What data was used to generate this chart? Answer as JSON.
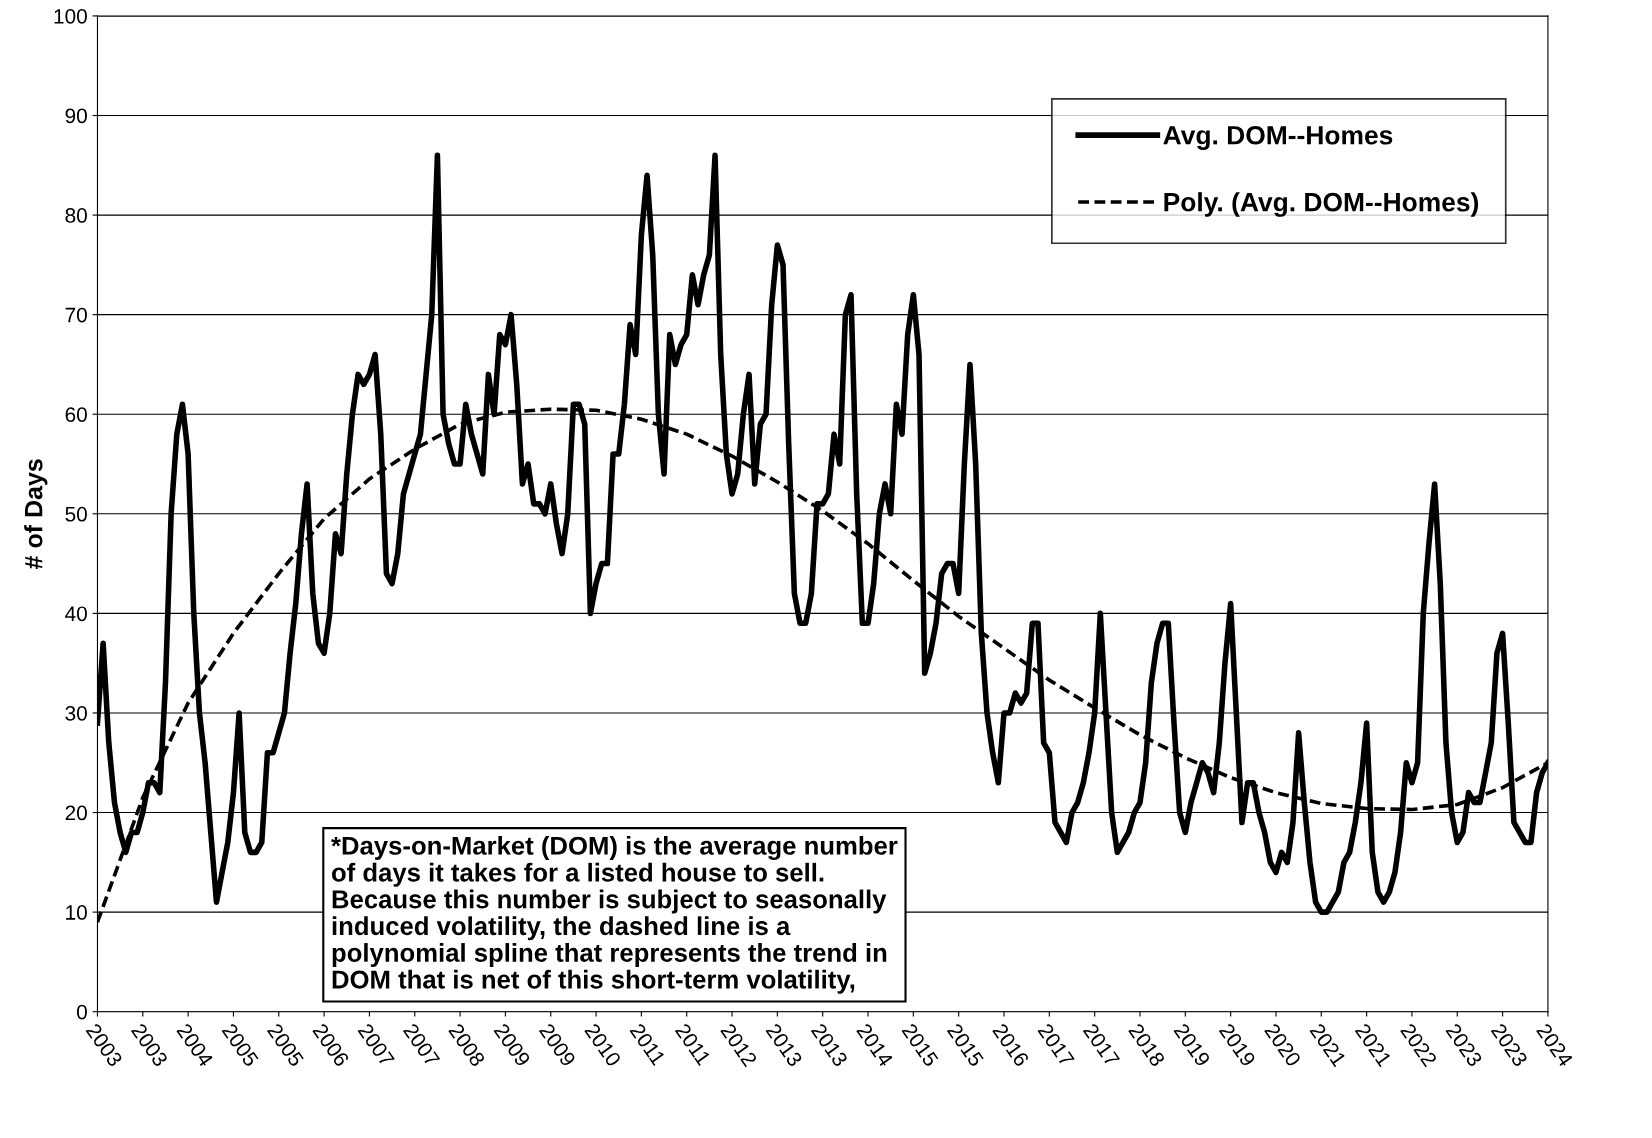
{
  "chart_data": {
    "type": "line",
    "ylabel": "# of Days",
    "ylim": [
      0,
      100
    ],
    "yticks": [
      0,
      10,
      20,
      30,
      40,
      50,
      60,
      70,
      80,
      90,
      100
    ],
    "categories": [
      "2003",
      null,
      null,
      null,
      null,
      null,
      null,
      null,
      "2003",
      null,
      null,
      null,
      null,
      null,
      null,
      null,
      "2004",
      null,
      null,
      null,
      null,
      null,
      null,
      null,
      "2005",
      null,
      null,
      null,
      null,
      null,
      null,
      null,
      "2005",
      null,
      null,
      null,
      null,
      null,
      null,
      null,
      "2006",
      null,
      null,
      null,
      null,
      null,
      null,
      null,
      "2007",
      null,
      null,
      null,
      null,
      null,
      null,
      null,
      "2007",
      null,
      null,
      null,
      null,
      null,
      null,
      null,
      "2008",
      null,
      null,
      null,
      null,
      null,
      null,
      null,
      "2009",
      null,
      null,
      null,
      null,
      null,
      null,
      null,
      "2009",
      null,
      null,
      null,
      null,
      null,
      null,
      null,
      "2010",
      null,
      null,
      null,
      null,
      null,
      null,
      null,
      "2011",
      null,
      null,
      null,
      null,
      null,
      null,
      null,
      "2011",
      null,
      null,
      null,
      null,
      null,
      null,
      null,
      "2012",
      null,
      null,
      null,
      null,
      null,
      null,
      null,
      "2013",
      null,
      null,
      null,
      null,
      null,
      null,
      null,
      "2013",
      null,
      null,
      null,
      null,
      null,
      null,
      null,
      "2014",
      null,
      null,
      null,
      null,
      null,
      null,
      null,
      "2015",
      null,
      null,
      null,
      null,
      null,
      null,
      null,
      "2015",
      null,
      null,
      null,
      null,
      null,
      null,
      null,
      "2016",
      null,
      null,
      null,
      null,
      null,
      null,
      null,
      "2017",
      null,
      null,
      null,
      null,
      null,
      null,
      null,
      "2017",
      null,
      null,
      null,
      null,
      null,
      null,
      null,
      "2018",
      null,
      null,
      null,
      null,
      null,
      null,
      null,
      "2019",
      null,
      null,
      null,
      null,
      null,
      null,
      null,
      "2019",
      null,
      null,
      null,
      null,
      null,
      null,
      null,
      "2020",
      null,
      null,
      null,
      null,
      null,
      null,
      null,
      "2021",
      null,
      null,
      null,
      null,
      null,
      null,
      null,
      "2021",
      null,
      null,
      null,
      null,
      null,
      null,
      null,
      "2022",
      null,
      null,
      null,
      null,
      null,
      null,
      null,
      "2023",
      null,
      null,
      null,
      null,
      null,
      null,
      null,
      "2023",
      null,
      null,
      null,
      null,
      null,
      null,
      null,
      "2024"
    ],
    "grid": "y",
    "legend": "top right",
    "marker": "none",
    "series": [
      {
        "name": "Avg. DOM--Homes",
        "color": "#000000",
        "line_style": "solid",
        "values": [
          29,
          37,
          27,
          21,
          18,
          16,
          18,
          18,
          20,
          23,
          23,
          22,
          33,
          50,
          58,
          61,
          56,
          40,
          30,
          25,
          18,
          11,
          14,
          17,
          22,
          30,
          18,
          16,
          16,
          17,
          26,
          26,
          28,
          30,
          36,
          41,
          48,
          53,
          42,
          37,
          36,
          40,
          48,
          46,
          54,
          60,
          64,
          63,
          64,
          66,
          58,
          44,
          43,
          46,
          52,
          54,
          56,
          58,
          64,
          70,
          86,
          60,
          57,
          55,
          55,
          61,
          58,
          56,
          54,
          64,
          60,
          68,
          67,
          70,
          63,
          53,
          55,
          51,
          51,
          50,
          53,
          49,
          46,
          50,
          61,
          61,
          59,
          40,
          43,
          45,
          45,
          56,
          56,
          61,
          69,
          66,
          78,
          84,
          76,
          60,
          54,
          68,
          65,
          67,
          68,
          74,
          71,
          74,
          76,
          86,
          66,
          56,
          52,
          54,
          60,
          64,
          53,
          59,
          60,
          71,
          77,
          75,
          57,
          42,
          39,
          39,
          42,
          51,
          51,
          52,
          58,
          55,
          70,
          72,
          52,
          39,
          39,
          43,
          50,
          53,
          50,
          61,
          58,
          68,
          72,
          66,
          34,
          36,
          39,
          44,
          45,
          45,
          42,
          55,
          65,
          55,
          38,
          30,
          26,
          23,
          30,
          30,
          32,
          31,
          32,
          39,
          39,
          27,
          26,
          19,
          18,
          17,
          20,
          21,
          23,
          26,
          30,
          40,
          30,
          20,
          16,
          17,
          18,
          20,
          21,
          25,
          33,
          37,
          39,
          39,
          29,
          20,
          18,
          21,
          23,
          25,
          24,
          22,
          27,
          35,
          41,
          30,
          19,
          23,
          23,
          20,
          18,
          15,
          14,
          16,
          15,
          19,
          28,
          21,
          15,
          11,
          10,
          10,
          11,
          12,
          15,
          16,
          19,
          23,
          29,
          16,
          12,
          11,
          12,
          14,
          18,
          25,
          23,
          25,
          40,
          47,
          53,
          43,
          27,
          20,
          17,
          18,
          22,
          21,
          21,
          24,
          27,
          36,
          38,
          29,
          19,
          18,
          17,
          17,
          22,
          24,
          25
        ]
      },
      {
        "name": "Poly. (Avg. DOM--Homes)",
        "color": "#000000",
        "line_style": "dashed",
        "values": [
          9,
          null,
          null,
          null,
          null,
          null,
          null,
          null,
          21.5,
          null,
          null,
          null,
          null,
          null,
          null,
          null,
          31,
          null,
          null,
          null,
          null,
          null,
          null,
          null,
          38,
          null,
          null,
          null,
          null,
          null,
          null,
          null,
          44,
          null,
          null,
          null,
          null,
          null,
          null,
          null,
          49.5,
          null,
          null,
          null,
          null,
          null,
          null,
          null,
          53.5,
          null,
          null,
          null,
          null,
          null,
          null,
          null,
          56.5,
          null,
          null,
          null,
          null,
          null,
          null,
          null,
          59,
          null,
          null,
          null,
          null,
          null,
          null,
          null,
          60.2,
          null,
          null,
          null,
          null,
          null,
          null,
          null,
          60.5,
          null,
          null,
          null,
          null,
          null,
          null,
          null,
          60.4,
          null,
          null,
          null,
          null,
          null,
          null,
          null,
          59.5,
          null,
          null,
          null,
          null,
          null,
          null,
          null,
          58,
          null,
          null,
          null,
          null,
          null,
          null,
          null,
          55.8,
          null,
          null,
          null,
          null,
          null,
          null,
          null,
          53.2,
          null,
          null,
          null,
          null,
          null,
          null,
          null,
          50.3,
          null,
          null,
          null,
          null,
          null,
          null,
          null,
          47,
          null,
          null,
          null,
          null,
          null,
          null,
          null,
          43.3,
          null,
          null,
          null,
          null,
          null,
          null,
          null,
          39.7,
          null,
          null,
          null,
          null,
          null,
          null,
          null,
          36.5,
          null,
          null,
          null,
          null,
          null,
          null,
          null,
          33.3,
          null,
          null,
          null,
          null,
          null,
          null,
          null,
          30.5,
          null,
          null,
          null,
          null,
          null,
          null,
          null,
          27.8,
          null,
          null,
          null,
          null,
          null,
          null,
          null,
          25.5,
          null,
          null,
          null,
          null,
          null,
          null,
          null,
          23.5,
          null,
          null,
          null,
          null,
          null,
          null,
          null,
          22,
          null,
          null,
          null,
          null,
          null,
          null,
          null,
          20.9,
          null,
          null,
          null,
          null,
          null,
          null,
          null,
          20.4,
          null,
          null,
          null,
          null,
          null,
          null,
          null,
          20.3,
          null,
          null,
          null,
          null,
          null,
          null,
          null,
          20.8,
          null,
          null,
          null,
          null,
          null,
          null,
          null,
          22.5,
          null,
          null,
          null,
          null,
          null,
          null,
          null,
          25
        ]
      }
    ],
    "annotations": [
      "*Days-on-Market (DOM) is the average number\nof days it takes for a listed house to sell.\nBecause this number is subject to seasonally\ninduced volatility, the dashed line is a\npolynomial spline that represents the trend in\nDOM that is net of this short-term volatility,"
    ]
  }
}
